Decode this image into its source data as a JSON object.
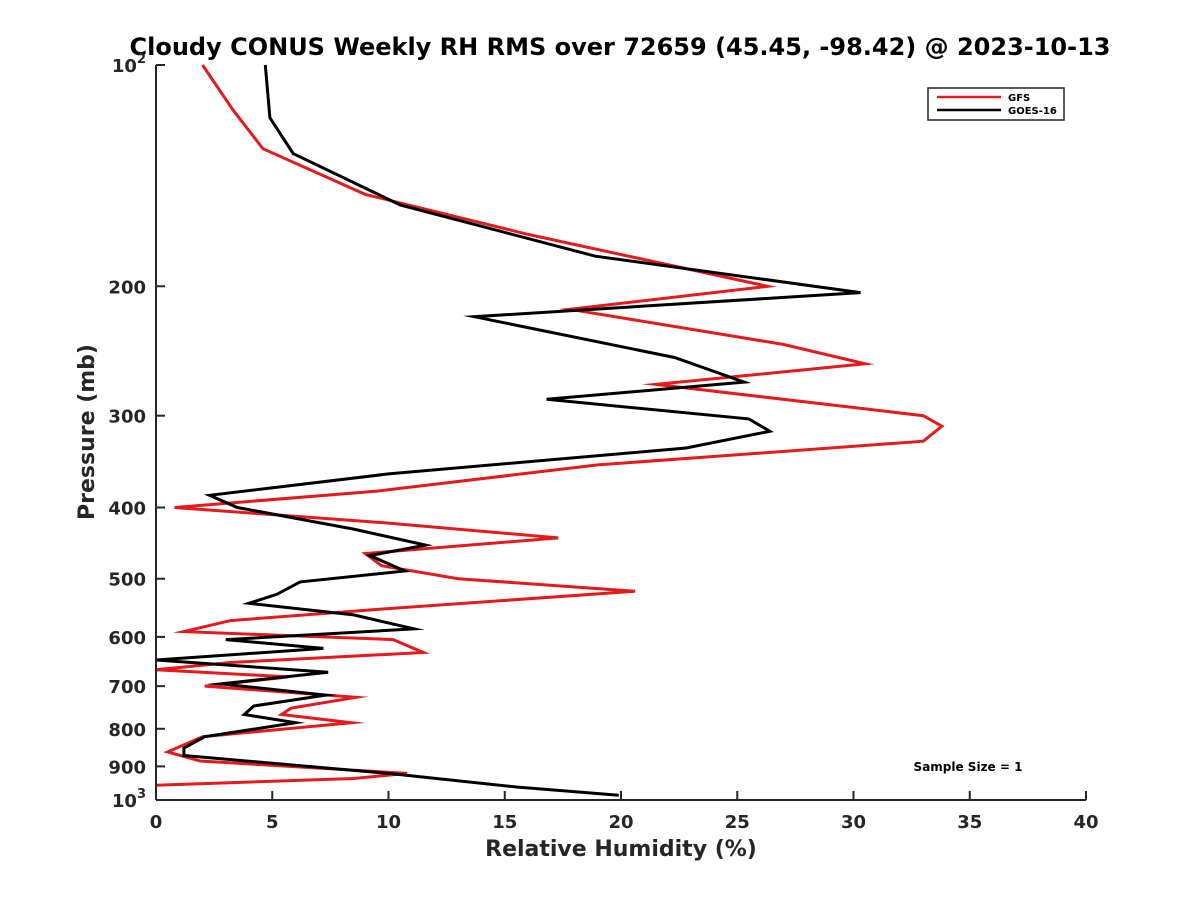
{
  "chart_data": {
    "type": "line",
    "title": "Cloudy CONUS Weekly RH RMS over 72659 (45.45, -98.42) @ 2023-10-13",
    "xlabel": "Relative Humidity (%)",
    "ylabel": "Pressure (mb)",
    "xlim": [
      0,
      40
    ],
    "ylim": [
      100,
      1000
    ],
    "y_scale": "log",
    "y_reversed": true,
    "grid": false,
    "legend_position": "top-right",
    "x_ticks": [
      0,
      5,
      10,
      15,
      20,
      25,
      30,
      35,
      40
    ],
    "x_tick_labels": [
      "0",
      "5",
      "10",
      "15",
      "20",
      "25",
      "30",
      "35",
      "40"
    ],
    "y_ticks": [
      100,
      200,
      300,
      400,
      500,
      600,
      700,
      800,
      900,
      1000
    ],
    "y_tick_labels": [
      {
        "base": "10",
        "exp": "2"
      },
      {
        "base": "200",
        "exp": ""
      },
      {
        "base": "300",
        "exp": ""
      },
      {
        "base": "400",
        "exp": ""
      },
      {
        "base": "500",
        "exp": ""
      },
      {
        "base": "600",
        "exp": ""
      },
      {
        "base": "700",
        "exp": ""
      },
      {
        "base": "800",
        "exp": ""
      },
      {
        "base": "900",
        "exp": ""
      },
      {
        "base": "10",
        "exp": "3"
      }
    ],
    "annotation": "Sample Size = 1",
    "series": [
      {
        "name": "GFS",
        "color": "#e41a1c",
        "points": [
          [
            2.0,
            100
          ],
          [
            3.3,
            115
          ],
          [
            4.6,
            130
          ],
          [
            9.0,
            150
          ],
          [
            16.0,
            170
          ],
          [
            26.3,
            200
          ],
          [
            17.8,
            215
          ],
          [
            27.0,
            240
          ],
          [
            30.5,
            255
          ],
          [
            21.5,
            272
          ],
          [
            33.0,
            300
          ],
          [
            33.8,
            310
          ],
          [
            33.0,
            325
          ],
          [
            19.0,
            350
          ],
          [
            9.5,
            380
          ],
          [
            0.8,
            400
          ],
          [
            10.0,
            420
          ],
          [
            17.3,
            440
          ],
          [
            9.0,
            462
          ],
          [
            9.7,
            480
          ],
          [
            13.0,
            500
          ],
          [
            20.6,
            520
          ],
          [
            9.6,
            550
          ],
          [
            3.2,
            570
          ],
          [
            1.2,
            590
          ],
          [
            10.2,
            605
          ],
          [
            11.5,
            630
          ],
          [
            3.2,
            650
          ],
          [
            0.0,
            665
          ],
          [
            5.7,
            680
          ],
          [
            2.1,
            700
          ],
          [
            8.6,
            725
          ],
          [
            5.8,
            750
          ],
          [
            5.4,
            765
          ],
          [
            8.4,
            785
          ],
          [
            2.0,
            820
          ],
          [
            0.5,
            860
          ],
          [
            1.9,
            885
          ],
          [
            10.8,
            920
          ],
          [
            8.5,
            935
          ],
          [
            0.0,
            955
          ]
        ]
      },
      {
        "name": "GOES-16",
        "color": "#000000",
        "points": [
          [
            4.7,
            100
          ],
          [
            4.9,
            118
          ],
          [
            5.9,
            132
          ],
          [
            10.5,
            155
          ],
          [
            18.9,
            182
          ],
          [
            30.3,
            204
          ],
          [
            13.7,
            220
          ],
          [
            22.3,
            250
          ],
          [
            25.3,
            270
          ],
          [
            16.8,
            285
          ],
          [
            25.5,
            303
          ],
          [
            26.4,
            315
          ],
          [
            22.8,
            332
          ],
          [
            10.0,
            360
          ],
          [
            2.3,
            385
          ],
          [
            3.5,
            400
          ],
          [
            8.5,
            428
          ],
          [
            11.6,
            450
          ],
          [
            9.2,
            465
          ],
          [
            10.7,
            488
          ],
          [
            6.2,
            505
          ],
          [
            5.2,
            525
          ],
          [
            4.0,
            540
          ],
          [
            8.5,
            560
          ],
          [
            11.1,
            585
          ],
          [
            3.0,
            605
          ],
          [
            7.2,
            622
          ],
          [
            0.0,
            645
          ],
          [
            7.4,
            670
          ],
          [
            2.8,
            695
          ],
          [
            7.3,
            720
          ],
          [
            4.2,
            745
          ],
          [
            3.8,
            765
          ],
          [
            6.0,
            785
          ],
          [
            2.1,
            820
          ],
          [
            1.2,
            850
          ],
          [
            1.2,
            870
          ],
          [
            10.0,
            920
          ],
          [
            15.5,
            960
          ],
          [
            19.9,
            985
          ]
        ]
      }
    ]
  }
}
